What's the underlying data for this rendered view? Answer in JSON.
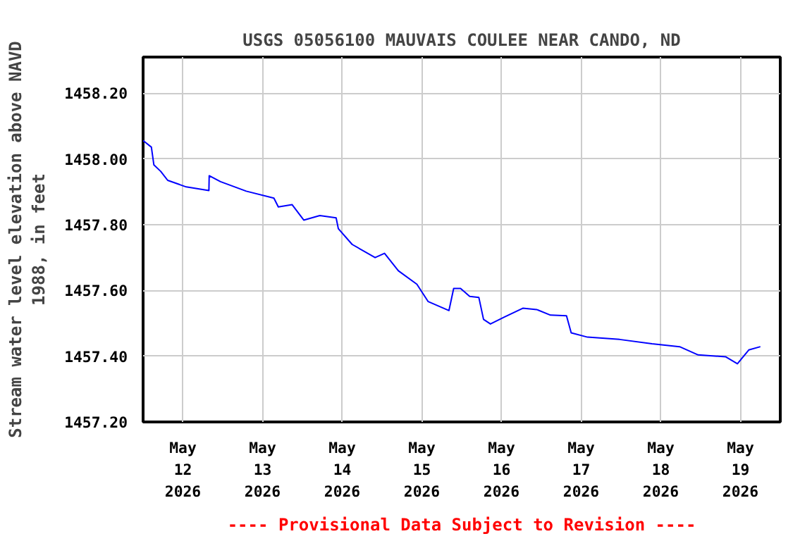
{
  "chart_data": {
    "type": "line",
    "title": "USGS 05056100 MAUVAIS COULEE NEAR CANDO, ND",
    "ylabel": "Stream water level elevation above NAVD\n1988, in feet",
    "annotations": [
      "---- Provisional Data Subject to Revision ----"
    ],
    "x": [
      "2026-05-11T12:00",
      "2026-05-11T14:30",
      "2026-05-11T15:15",
      "2026-05-11T17:20",
      "2026-05-11T19:25",
      "2026-05-12T01:00",
      "2026-05-12T07:50",
      "2026-05-12T07:55",
      "2026-05-12T11:20",
      "2026-05-12T19:05",
      "2026-05-13T03:25",
      "2026-05-13T04:45",
      "2026-05-13T08:55",
      "2026-05-13T12:25",
      "2026-05-13T17:15",
      "2026-05-13T22:10",
      "2026-05-13T22:50",
      "2026-05-14T03:00",
      "2026-05-14T09:55",
      "2026-05-14T12:45",
      "2026-05-14T16:55",
      "2026-05-14T22:30",
      "2026-05-15T01:55",
      "2026-05-15T08:10",
      "2026-05-15T09:35",
      "2026-05-15T11:40",
      "2026-05-15T14:25",
      "2026-05-15T17:10",
      "2026-05-15T18:35",
      "2026-05-15T20:40",
      "2026-05-16T00:50",
      "2026-05-16T06:25",
      "2026-05-16T10:35",
      "2026-05-16T14:45",
      "2026-05-16T19:35",
      "2026-05-16T21:00",
      "2026-05-17T01:55",
      "2026-05-17T11:35",
      "2026-05-17T21:20",
      "2026-05-18T05:40",
      "2026-05-18T11:15",
      "2026-05-18T19:35",
      "2026-05-18T23:05",
      "2026-05-19T02:30",
      "2026-05-19T06:00"
    ],
    "series": [
      {
        "color": "#0000ff",
        "values": [
          1458.056,
          1458.036,
          1457.982,
          1457.962,
          1457.935,
          1457.915,
          1457.904,
          1457.949,
          1457.931,
          1457.902,
          1457.881,
          1457.854,
          1457.861,
          1457.814,
          1457.828,
          1457.821,
          1457.788,
          1457.74,
          1457.7,
          1457.713,
          1457.66,
          1457.619,
          1457.566,
          1457.539,
          1457.606,
          1457.606,
          1457.582,
          1457.579,
          1457.512,
          1457.498,
          1457.519,
          1457.546,
          1457.542,
          1457.525,
          1457.523,
          1457.471,
          1457.458,
          1457.451,
          1457.438,
          1457.429,
          1457.404,
          1457.398,
          1457.377,
          1457.419,
          1457.429
        ]
      }
    ],
    "xlim": [
      "2026-05-11T12:00",
      "2026-05-19T12:00"
    ],
    "xticks": [
      {
        "value": "2026-05-12",
        "label": "May\n12\n2026"
      },
      {
        "value": "2026-05-13",
        "label": "May\n13\n2026"
      },
      {
        "value": "2026-05-14",
        "label": "May\n14\n2026"
      },
      {
        "value": "2026-05-15",
        "label": "May\n15\n2026"
      },
      {
        "value": "2026-05-16",
        "label": "May\n16\n2026"
      },
      {
        "value": "2026-05-17",
        "label": "May\n17\n2026"
      },
      {
        "value": "2026-05-18",
        "label": "May\n18\n2026"
      },
      {
        "value": "2026-05-19",
        "label": "May\n19\n2026"
      }
    ],
    "ylim": [
      1457.2,
      1458.31
    ],
    "yticks": [
      {
        "value": 1457.2,
        "label": "1457.20"
      },
      {
        "value": 1457.4,
        "label": "1457.40"
      },
      {
        "value": 1457.6,
        "label": "1457.60"
      },
      {
        "value": 1457.8,
        "label": "1457.80"
      },
      {
        "value": 1458.0,
        "label": "1458.00"
      },
      {
        "value": 1458.2,
        "label": "1458.20"
      }
    ],
    "grid": true
  }
}
